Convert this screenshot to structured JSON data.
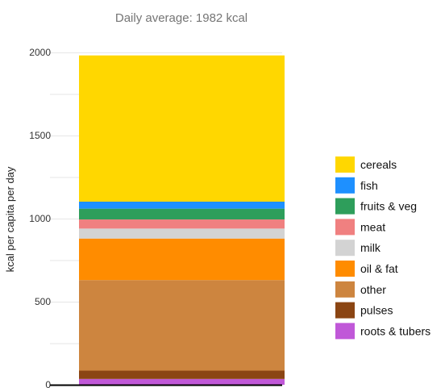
{
  "chart_data": {
    "type": "bar",
    "stacked": true,
    "subtitle": "Daily average: 1982 kcal",
    "xlabel": "",
    "ylabel": "kcal per capita per day",
    "ylim": [
      0,
      2000
    ],
    "yticks": [
      0,
      500,
      1000,
      1500,
      2000
    ],
    "grid": true,
    "legend_position": "right",
    "series": [
      {
        "name": "roots & tubers",
        "value": 35,
        "color": "#C058D8"
      },
      {
        "name": "pulses",
        "value": 50,
        "color": "#8B4513"
      },
      {
        "name": "other",
        "value": 545,
        "color": "#CD853F"
      },
      {
        "name": "oil & fat",
        "value": 250,
        "color": "#FF8C00"
      },
      {
        "name": "milk",
        "value": 60,
        "color": "#D3D3D3"
      },
      {
        "name": "meat",
        "value": 55,
        "color": "#F08080"
      },
      {
        "name": "fruits & veg",
        "value": 65,
        "color": "#2E9E5B"
      },
      {
        "name": "fish",
        "value": 42,
        "color": "#1E90FF"
      },
      {
        "name": "cereals",
        "value": 880,
        "color": "#FFD700"
      }
    ],
    "legend_order": [
      "cereals",
      "fish",
      "fruits & veg",
      "meat",
      "milk",
      "oil & fat",
      "other",
      "pulses",
      "roots & tubers"
    ]
  }
}
